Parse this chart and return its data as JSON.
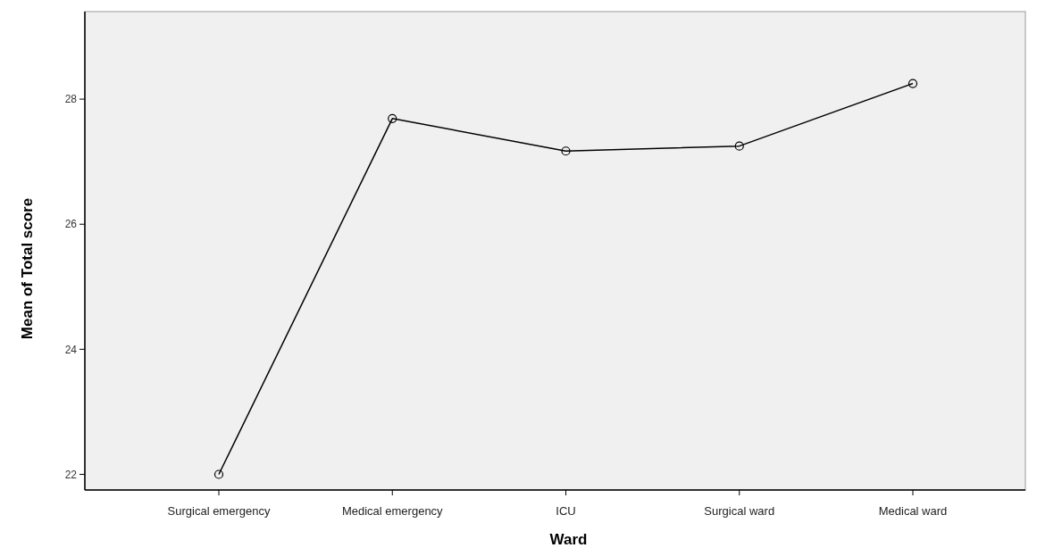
{
  "chart_data": {
    "type": "line",
    "xlabel": "Ward",
    "ylabel": "Mean of Total score",
    "categories": [
      "Surgical emergency",
      "Medical emergency",
      "ICU",
      "Surgical ward",
      "Medical ward"
    ],
    "series": [
      {
        "color": "#000000",
        "values": [
          22.0,
          27.69,
          27.17,
          27.25,
          28.25
        ]
      }
    ],
    "ylim": [
      21.75,
      29.4
    ],
    "yticks": [
      22,
      24,
      26,
      28
    ],
    "marker": "circle",
    "line_style": "solid",
    "grid": false
  }
}
